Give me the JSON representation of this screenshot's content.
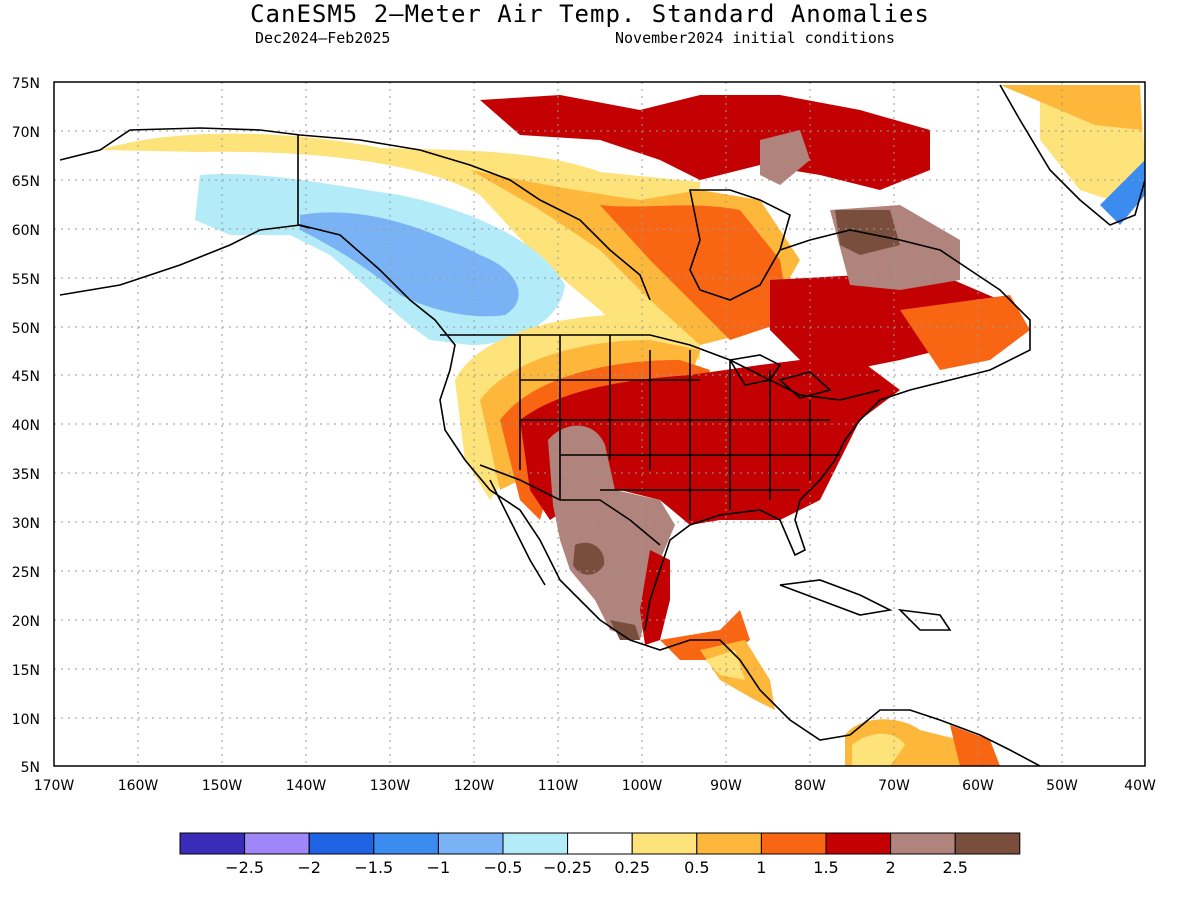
{
  "header": {
    "title": "CanESM5 2—Meter Air Temp. Standard Anomalies",
    "period": "Dec2024—Feb2025",
    "init": "November2024 initial conditions"
  },
  "map": {
    "lon_range": [
      -170,
      -40
    ],
    "lat_range": [
      5,
      75
    ],
    "lon_ticks": [
      "170W",
      "160W",
      "150W",
      "140W",
      "130W",
      "120W",
      "110W",
      "100W",
      "90W",
      "80W",
      "70W",
      "60W",
      "50W",
      "40W"
    ],
    "lat_ticks": [
      "75N",
      "70N",
      "65N",
      "60N",
      "55N",
      "50N",
      "45N",
      "40N",
      "35N",
      "30N",
      "25N",
      "20N",
      "15N",
      "10N",
      "5N"
    ],
    "grid": "dotted"
  },
  "colorbar": {
    "colors": [
      "#3a2bb8",
      "#9f87fa",
      "#1f63e4",
      "#3c8cef",
      "#7ab3f5",
      "#b3ecf8",
      "#ffffff",
      "#fee27a",
      "#fdb83c",
      "#f86613",
      "#c30102",
      "#b0837c",
      "#7a4e3c"
    ],
    "labels": [
      "−2.5",
      "−2",
      "−1.5",
      "−1",
      "−0.5",
      "−0.25",
      "0.25",
      "0.5",
      "1",
      "1.5",
      "2",
      "2.5"
    ]
  },
  "palette": {
    "cold1": "#b3ecf8",
    "cold2": "#7ab3f5",
    "cold3": "#3c8cef",
    "cold4": "#1f63e4",
    "warm1": "#fee27a",
    "warm2": "#fdb83c",
    "warm3": "#f86613",
    "warm4": "#c30102",
    "warm5": "#b0837c",
    "warm6": "#7a4e3c"
  }
}
